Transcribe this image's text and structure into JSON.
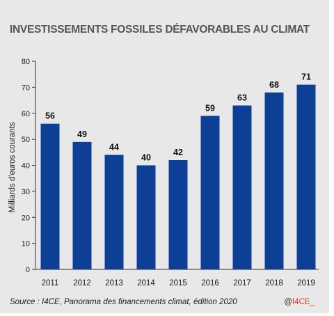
{
  "chart_data": {
    "type": "bar",
    "title": "INVESTISSEMENTS FOSSILES DÉFAVORABLES AU CLIMAT",
    "ylabel": "Milliards d'euros courants",
    "xlabel": "",
    "categories": [
      "2011",
      "2012",
      "2013",
      "2014",
      "2015",
      "2016",
      "2017",
      "2018",
      "2019"
    ],
    "values": [
      56,
      49,
      44,
      40,
      42,
      59,
      63,
      68,
      71
    ],
    "data_labels": [
      "56",
      "49",
      "44",
      "40",
      "42",
      "59",
      "63",
      "68",
      "71"
    ],
    "ylim": [
      0,
      80
    ],
    "yticks": [
      0,
      10,
      20,
      30,
      40,
      50,
      60,
      70,
      80
    ],
    "grid": false,
    "bar_color": "#0d3f96"
  },
  "footer": {
    "source": "Source : I4CE, Panorama des financements climat, édition 2020",
    "credit_prefix": "@",
    "credit_brand": "I4CE_"
  },
  "colors": {
    "background": "#e8e8e9",
    "bar": "#0d3f96",
    "credit_accent": "#e3342f"
  }
}
